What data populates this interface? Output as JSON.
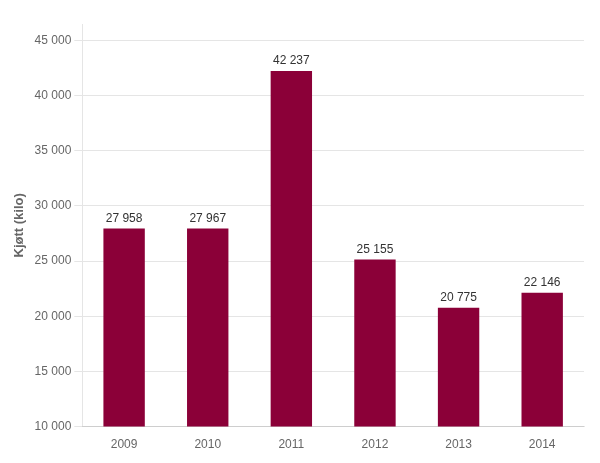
{
  "chart_data": {
    "type": "bar",
    "ylabel": "Kjøtt (kilo)",
    "categories": [
      "2009",
      "2010",
      "2011",
      "2012",
      "2013",
      "2014"
    ],
    "values": [
      27958,
      27967,
      42237,
      25155,
      20775,
      22146
    ],
    "value_labels": [
      "27 958",
      "27 967",
      "42 237",
      "25 155",
      "20 775",
      "22 146"
    ],
    "data_labels": true,
    "color": "#8B0038",
    "ylim": [
      10000,
      46500
    ],
    "yticks": [
      {
        "value": 10000,
        "label": "10 000"
      },
      {
        "value": 15000,
        "label": "15 000"
      },
      {
        "value": 20000,
        "label": "20 000"
      },
      {
        "value": 25000,
        "label": "25 000"
      },
      {
        "value": 30000,
        "label": "30 000"
      },
      {
        "value": 35000,
        "label": "35 000"
      },
      {
        "value": 40000,
        "label": "40 000"
      },
      {
        "value": 45000,
        "label": "45 000"
      }
    ],
    "grid": true
  }
}
